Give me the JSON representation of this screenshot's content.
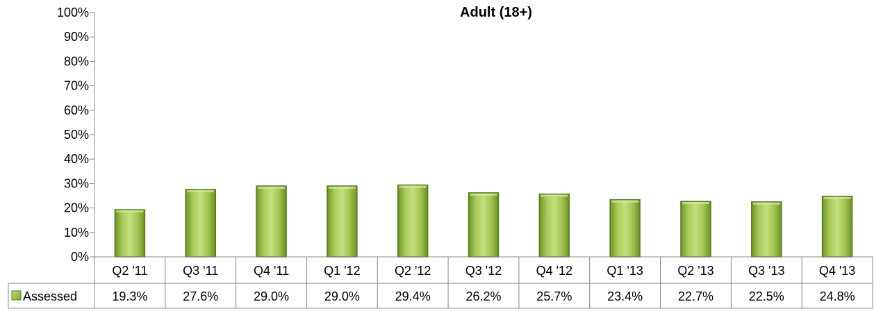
{
  "chart_data": {
    "type": "bar",
    "title": "Adult (18+)",
    "xlabel": "",
    "ylabel": "",
    "categories": [
      "Q2 '11",
      "Q3 '11",
      "Q4 '11",
      "Q1 '12",
      "Q2 '12",
      "Q3 '12",
      "Q4 '12",
      "Q1 '13",
      "Q2 '13",
      "Q3 '13",
      "Q4 '13"
    ],
    "series": [
      {
        "name": "Assessed",
        "values": [
          19.3,
          27.6,
          29.0,
          29.0,
          29.4,
          26.2,
          25.7,
          23.4,
          22.7,
          22.5,
          24.8
        ],
        "labels": [
          "19.3%",
          "27.6%",
          "29.0%",
          "29.0%",
          "29.4%",
          "26.2%",
          "25.7%",
          "23.4%",
          "22.7%",
          "22.5%",
          "24.8%"
        ],
        "color": "#8fb83b"
      }
    ],
    "yticks": [
      "0%",
      "10%",
      "20%",
      "30%",
      "40%",
      "50%",
      "60%",
      "70%",
      "80%",
      "90%",
      "100%"
    ],
    "ylim": [
      0,
      100
    ],
    "unit": "%",
    "grid": false,
    "legend": "data-table"
  }
}
